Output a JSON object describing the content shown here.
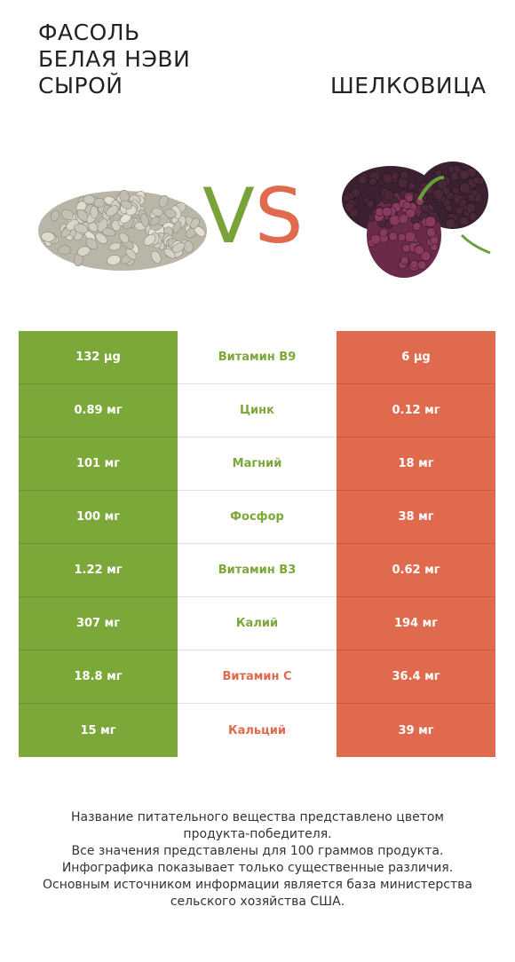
{
  "header": {
    "left_title": "ФАСОЛЬ\nБЕЛАЯ НЭВИ\nСЫРОЙ",
    "vs_v": "V",
    "vs_s": "S",
    "right_title": "ШЕЛКОВИЦА"
  },
  "colors": {
    "winner_left": "#7ca83a",
    "winner_right": "#e06a4d"
  },
  "rows": [
    {
      "left": "132 µg",
      "name": "Витамин B9",
      "right": "6 µg",
      "winner": "left"
    },
    {
      "left": "0.89 мг",
      "name": "Цинк",
      "right": "0.12 мг",
      "winner": "left"
    },
    {
      "left": "101 мг",
      "name": "Магний",
      "right": "18 мг",
      "winner": "left"
    },
    {
      "left": "100 мг",
      "name": "Фосфор",
      "right": "38 мг",
      "winner": "left"
    },
    {
      "left": "1.22 мг",
      "name": "Витамин B3",
      "right": "0.62 мг",
      "winner": "left"
    },
    {
      "left": "307 мг",
      "name": "Калий",
      "right": "194 мг",
      "winner": "left"
    },
    {
      "left": "18.8 мг",
      "name": "Витамин C",
      "right": "36.4 мг",
      "winner": "right"
    },
    {
      "left": "15 мг",
      "name": "Кальций",
      "right": "39 мг",
      "winner": "right"
    }
  ],
  "footer": [
    "Название питательного вещества представлено цветом",
    "продукта-победителя.",
    "Все значения представлены для 100 граммов продукта.",
    "Инфографика показывает только существенные различия.",
    "Основным источником информации является база министерства",
    "сельского хозяйства США."
  ]
}
